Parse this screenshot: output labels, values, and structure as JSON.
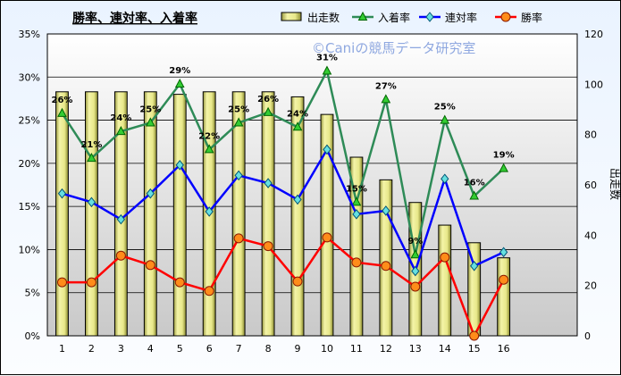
{
  "chart_data": {
    "type": "bar",
    "title": "勝率、連対率、入着率",
    "watermark": "©Caniの競馬データ研究室",
    "categories": [
      "1",
      "2",
      "3",
      "4",
      "5",
      "6",
      "7",
      "8",
      "9",
      "10",
      "11",
      "12",
      "13",
      "14",
      "15",
      "16"
    ],
    "y_left": {
      "ticks": [
        "0%",
        "5%",
        "10%",
        "15%",
        "20%",
        "25%",
        "30%",
        "35%"
      ],
      "ylim": [
        0,
        35
      ]
    },
    "y_right": {
      "label": "出走数",
      "ticks": [
        "0",
        "20",
        "40",
        "60",
        "80",
        "100",
        "120"
      ],
      "ylim": [
        0,
        120
      ]
    },
    "series": [
      {
        "name": "出走数",
        "kind": "bar",
        "axis": "right",
        "color": "#e6e68c",
        "values": [
          97,
          97,
          97,
          97,
          96,
          97,
          97,
          97,
          95,
          88,
          71,
          62,
          53,
          44,
          37,
          31
        ]
      },
      {
        "name": "入着率",
        "kind": "line",
        "axis": "left",
        "color": "#2e8b57",
        "marker": "triangle",
        "values": [
          25.8,
          20.6,
          23.7,
          24.7,
          29.2,
          21.6,
          24.7,
          25.9,
          24.2,
          30.7,
          15.5,
          27.4,
          9.4,
          25.0,
          16.2,
          19.4
        ],
        "labels": [
          "26%",
          "21%",
          "24%",
          "25%",
          "29%",
          "22%",
          "25%",
          "26%",
          "24%",
          "31%",
          "15%",
          "27%",
          "9%",
          "25%",
          "16%",
          "19%"
        ]
      },
      {
        "name": "連対率",
        "kind": "line",
        "axis": "left",
        "color": "#0000ff",
        "marker": "diamond",
        "values": [
          16.5,
          15.5,
          13.5,
          16.5,
          19.8,
          14.4,
          18.6,
          17.7,
          15.8,
          21.6,
          14.1,
          14.5,
          7.5,
          18.2,
          8.1,
          9.7
        ]
      },
      {
        "name": "勝率",
        "kind": "line",
        "axis": "left",
        "color": "#ff0000",
        "marker": "circle",
        "values": [
          6.2,
          6.2,
          9.3,
          8.2,
          6.2,
          5.2,
          11.3,
          10.4,
          6.3,
          11.4,
          8.5,
          8.1,
          5.7,
          9.1,
          0.0,
          6.5
        ]
      }
    ],
    "legend": [
      "出走数",
      "入着率",
      "連対率",
      "勝率"
    ],
    "legend_position": "top-right",
    "grid": true
  }
}
